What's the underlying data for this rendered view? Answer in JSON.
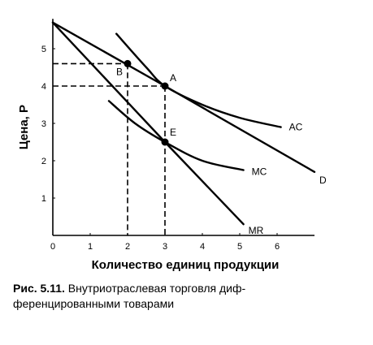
{
  "chart_data": {
    "type": "line",
    "xlabel": "Количество единиц продукции",
    "ylabel": "Цена, P",
    "xlim": [
      0,
      7
    ],
    "ylim": [
      0,
      5.8
    ],
    "x_ticks": [
      "0",
      "1",
      "2",
      "3",
      "4",
      "5",
      "6"
    ],
    "y_ticks": [
      "1",
      "2",
      "3",
      "4",
      "5"
    ],
    "grid": false,
    "series": [
      {
        "name": "D",
        "style": "solid",
        "points": [
          [
            0,
            5.7
          ],
          [
            3,
            4.0
          ],
          [
            7,
            1.7
          ]
        ]
      },
      {
        "name": "MR",
        "style": "solid",
        "points": [
          [
            0,
            5.7
          ],
          [
            3,
            2.5
          ],
          [
            5.1,
            0.3
          ]
        ]
      },
      {
        "name": "AC",
        "style": "solid",
        "points": [
          [
            1.7,
            5.4
          ],
          [
            2.5,
            4.5
          ],
          [
            3,
            4.0
          ],
          [
            4,
            3.5
          ],
          [
            5,
            3.15
          ],
          [
            6.1,
            2.9
          ]
        ]
      },
      {
        "name": "MC",
        "style": "solid",
        "points": [
          [
            1.5,
            3.6
          ],
          [
            2.2,
            3.0
          ],
          [
            3,
            2.5
          ],
          [
            4,
            2.0
          ],
          [
            5.1,
            1.75
          ]
        ]
      }
    ],
    "points": [
      {
        "label": "A",
        "x": 3,
        "y": 4.0
      },
      {
        "label": "B",
        "x": 2,
        "y": 4.6
      },
      {
        "label": "E",
        "x": 3,
        "y": 2.5
      }
    ],
    "guides": [
      {
        "from": [
          0,
          4.6
        ],
        "to": [
          2,
          4.6
        ]
      },
      {
        "from": [
          2,
          4.6
        ],
        "to": [
          2,
          0
        ]
      },
      {
        "from": [
          0,
          4.0
        ],
        "to": [
          3,
          4.0
        ]
      },
      {
        "from": [
          3,
          4.0
        ],
        "to": [
          3,
          0
        ]
      }
    ]
  },
  "caption": {
    "fig_num": "Рис. 5.11.",
    "line1": "Внутриотраслевая торговля диф-",
    "line2": "ференцированными товарами"
  }
}
